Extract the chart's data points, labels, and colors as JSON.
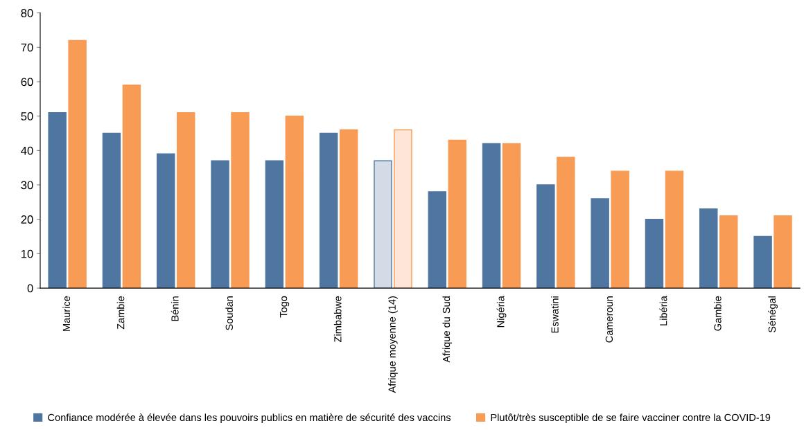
{
  "chart_data": {
    "type": "bar",
    "categories": [
      "Maurice",
      "Zambie",
      "Bénin",
      "Soudan",
      "Togo",
      "Zimbabwe",
      "Afrique moyenne (14)",
      "Afrique du Sud",
      "Nigéria",
      "Eswatini",
      "Cameroun",
      "Libéria",
      "Gambie",
      "Sénégal"
    ],
    "series": [
      {
        "name": "Confiance modérée à élevée dans les pouvoirs publics en matière de sécurité des vaccins",
        "color": "#4e76a0",
        "colors": [
          "#4e76a0",
          "#4e76a0",
          "#4e76a0",
          "#4e76a0",
          "#4e76a0",
          "#4e76a0",
          "#d4dbe7",
          "#4e76a0",
          "#4e76a0",
          "#4e76a0",
          "#4e76a0",
          "#4e76a0",
          "#4e76a0",
          "#4e76a0"
        ],
        "values": [
          51,
          45,
          39,
          37,
          37,
          45,
          37,
          28,
          42,
          30,
          26,
          20,
          23,
          15
        ]
      },
      {
        "name": "Plutôt/très susceptible de se faire vacciner contre la COVID-19",
        "color": "#f79b55",
        "colors": [
          "#f79b55",
          "#f79b55",
          "#f79b55",
          "#f79b55",
          "#f79b55",
          "#f79b55",
          "#fde6d7",
          "#f79b55",
          "#f79b55",
          "#f79b55",
          "#f79b55",
          "#f79b55",
          "#f79b55",
          "#f79b55"
        ],
        "values": [
          72,
          59,
          51,
          51,
          50,
          46,
          46,
          43,
          42,
          38,
          34,
          34,
          21,
          21
        ]
      }
    ],
    "ylim": [
      0,
      80
    ],
    "yticks": [
      0,
      10,
      20,
      30,
      40,
      50,
      60,
      70,
      80
    ],
    "grid": false,
    "legend": "bottom"
  }
}
